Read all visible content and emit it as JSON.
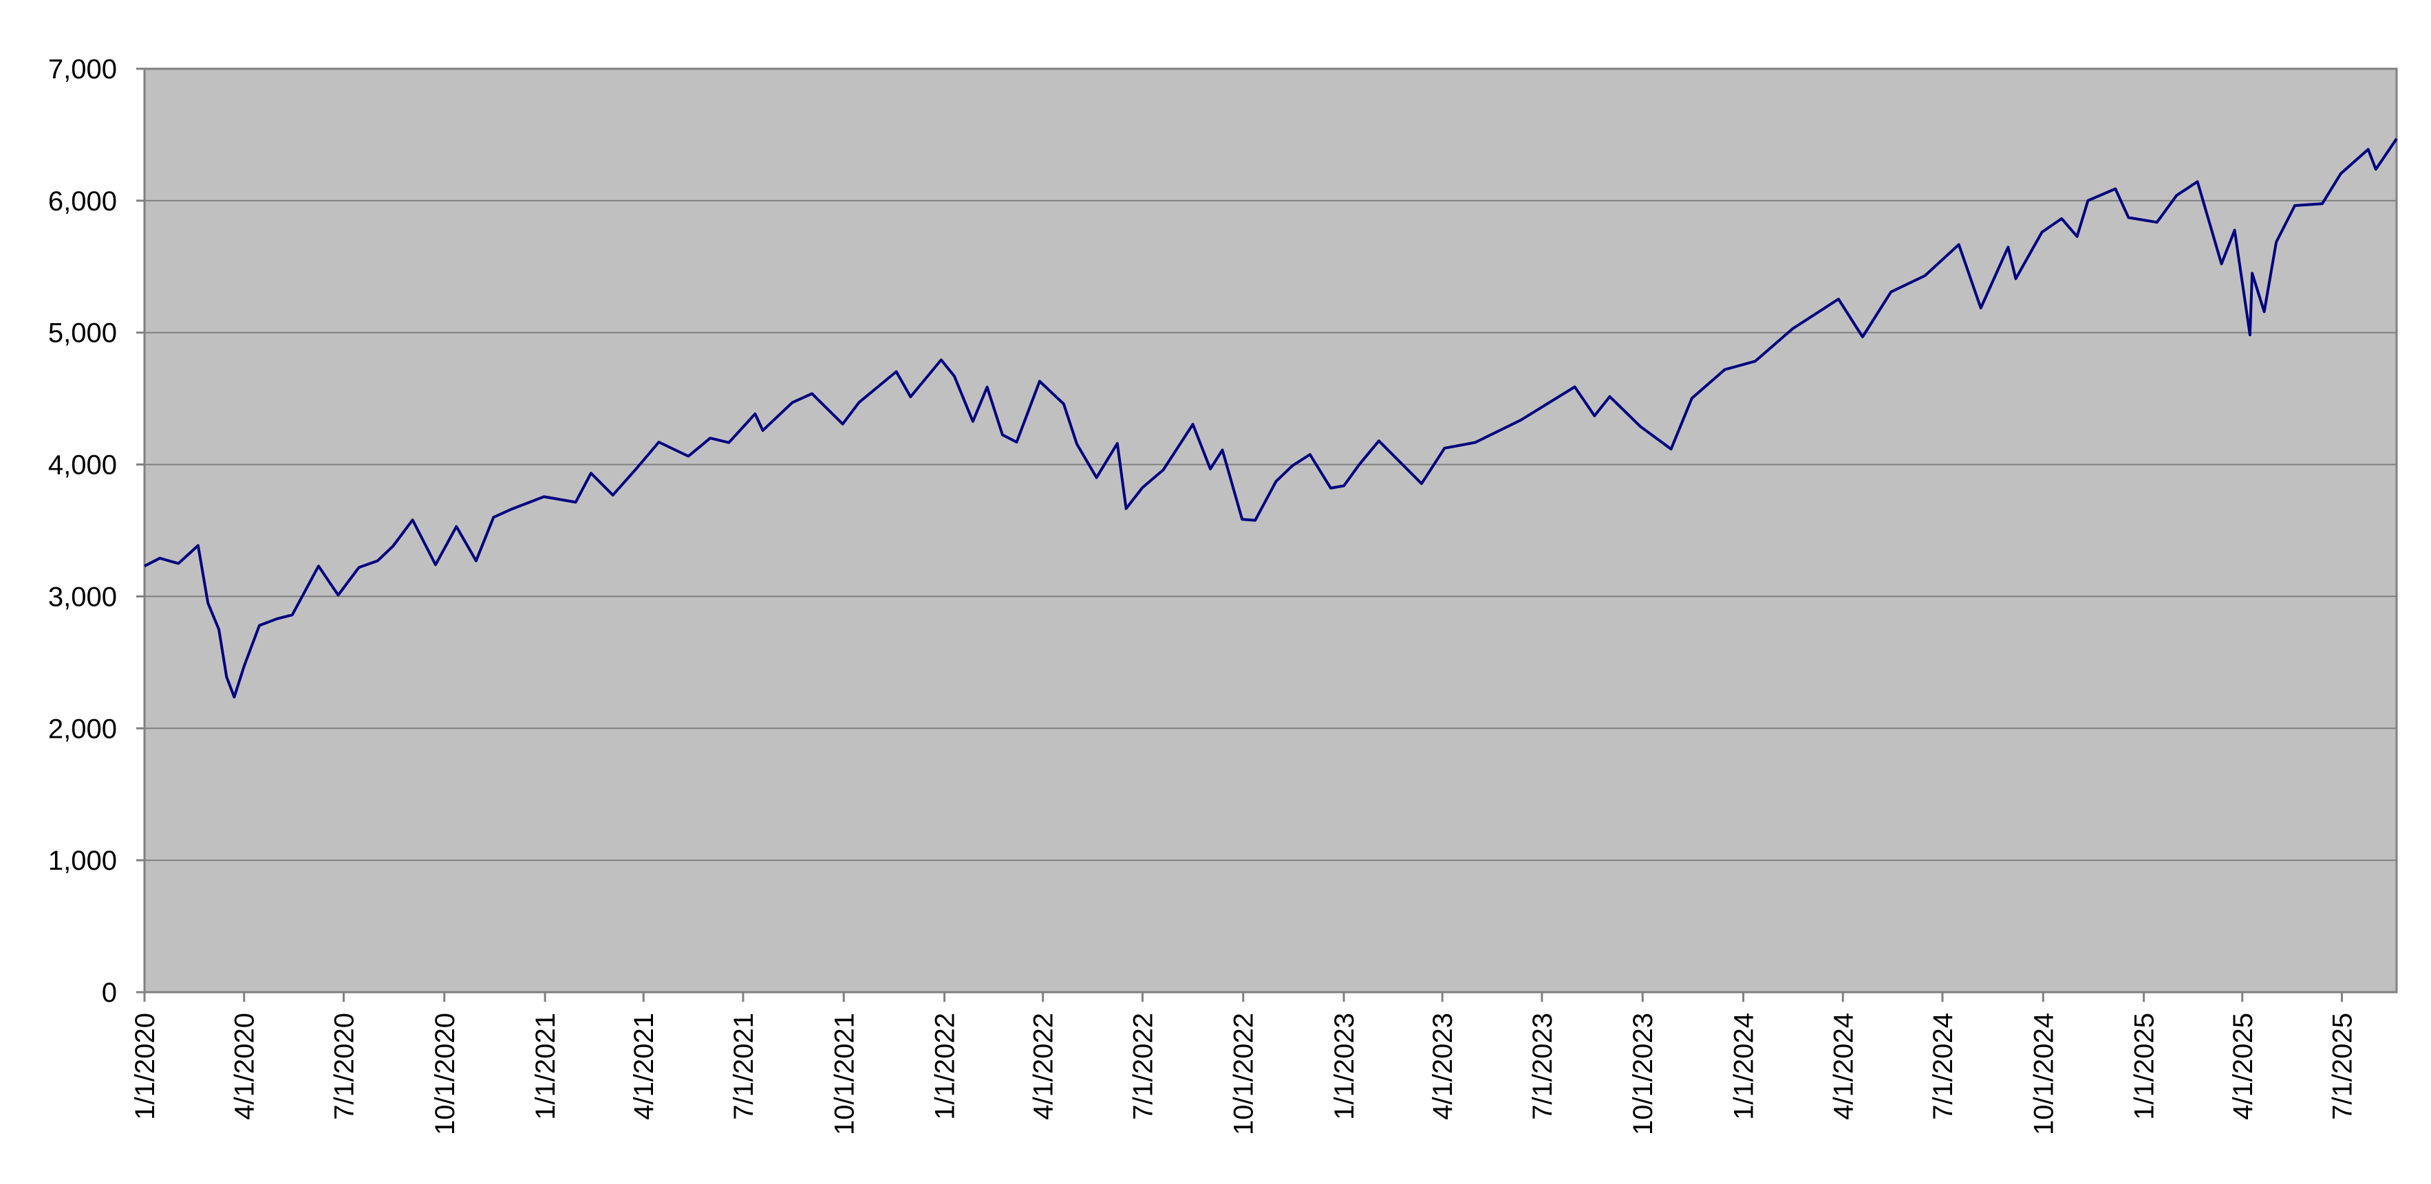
{
  "chart_data": {
    "type": "line",
    "title": "",
    "xlabel": "",
    "ylabel": "",
    "ylim": [
      0,
      7000
    ],
    "xlim": [
      "2020-01-01",
      "2025-08-20"
    ],
    "grid": true,
    "legend": "none",
    "y_ticks": [
      0,
      1000,
      2000,
      3000,
      4000,
      5000,
      6000,
      7000
    ],
    "y_tick_labels": [
      "0",
      "1,000",
      "2,000",
      "3,000",
      "4,000",
      "5,000",
      "6,000",
      "7,000"
    ],
    "x_ticks": [
      "2020-01-01",
      "2020-04-01",
      "2020-07-01",
      "2020-10-01",
      "2021-01-01",
      "2021-04-01",
      "2021-07-01",
      "2021-10-01",
      "2022-01-01",
      "2022-04-01",
      "2022-07-01",
      "2022-10-01",
      "2023-01-01",
      "2023-04-01",
      "2023-07-01",
      "2023-10-01",
      "2024-01-01",
      "2024-04-01",
      "2024-07-01",
      "2024-10-01",
      "2025-01-01",
      "2025-04-01",
      "2025-07-01"
    ],
    "x_tick_labels": [
      "1/1/2020",
      "4/1/2020",
      "7/1/2020",
      "10/1/2020",
      "1/1/2021",
      "4/1/2021",
      "7/1/2021",
      "10/1/2021",
      "1/1/2022",
      "4/1/2022",
      "7/1/2022",
      "10/1/2022",
      "1/1/2023",
      "4/1/2023",
      "7/1/2023",
      "10/1/2023",
      "1/1/2024",
      "4/1/2024",
      "7/1/2024",
      "10/1/2024",
      "1/1/2025",
      "4/1/2025",
      "7/1/2025"
    ],
    "colors": {
      "plot_background": "#C0C0C0",
      "line": "#000080",
      "grid": "#808080",
      "axis": "#808080"
    },
    "series": [
      {
        "points": [
          [
            "2020-01-01",
            3230
          ],
          [
            "2020-01-15",
            3290
          ],
          [
            "2020-02-01",
            3250
          ],
          [
            "2020-02-19",
            3386
          ],
          [
            "2020-02-28",
            2950
          ],
          [
            "2020-03-09",
            2750
          ],
          [
            "2020-03-16",
            2390
          ],
          [
            "2020-03-23",
            2237
          ],
          [
            "2020-04-01",
            2470
          ],
          [
            "2020-04-15",
            2780
          ],
          [
            "2020-05-01",
            2830
          ],
          [
            "2020-05-15",
            2860
          ],
          [
            "2020-06-08",
            3230
          ],
          [
            "2020-06-26",
            3010
          ],
          [
            "2020-07-15",
            3220
          ],
          [
            "2020-08-01",
            3270
          ],
          [
            "2020-08-15",
            3380
          ],
          [
            "2020-09-02",
            3580
          ],
          [
            "2020-09-23",
            3240
          ],
          [
            "2020-10-12",
            3530
          ],
          [
            "2020-10-30",
            3270
          ],
          [
            "2020-11-15",
            3600
          ],
          [
            "2020-12-01",
            3660
          ],
          [
            "2020-12-31",
            3756
          ],
          [
            "2021-01-29",
            3714
          ],
          [
            "2021-02-12",
            3934
          ],
          [
            "2021-03-04",
            3768
          ],
          [
            "2021-03-26",
            3974
          ],
          [
            "2021-04-15",
            4170
          ],
          [
            "2021-05-12",
            4063
          ],
          [
            "2021-06-01",
            4200
          ],
          [
            "2021-06-18",
            4166
          ],
          [
            "2021-07-12",
            4384
          ],
          [
            "2021-07-19",
            4258
          ],
          [
            "2021-08-15",
            4470
          ],
          [
            "2021-09-02",
            4537
          ],
          [
            "2021-09-30",
            4307
          ],
          [
            "2021-10-15",
            4471
          ],
          [
            "2021-11-18",
            4704
          ],
          [
            "2021-12-01",
            4513
          ],
          [
            "2021-12-29",
            4793
          ],
          [
            "2022-01-10",
            4670
          ],
          [
            "2022-01-27",
            4326
          ],
          [
            "2022-02-09",
            4587
          ],
          [
            "2022-02-23",
            4225
          ],
          [
            "2022-03-08",
            4170
          ],
          [
            "2022-03-29",
            4631
          ],
          [
            "2022-04-20",
            4459
          ],
          [
            "2022-05-02",
            4155
          ],
          [
            "2022-05-20",
            3901
          ],
          [
            "2022-06-08",
            4160
          ],
          [
            "2022-06-16",
            3666
          ],
          [
            "2022-07-01",
            3825
          ],
          [
            "2022-07-20",
            3959
          ],
          [
            "2022-08-16",
            4305
          ],
          [
            "2022-09-01",
            3966
          ],
          [
            "2022-09-12",
            4110
          ],
          [
            "2022-09-30",
            3585
          ],
          [
            "2022-10-12",
            3577
          ],
          [
            "2022-10-31",
            3872
          ],
          [
            "2022-11-15",
            3991
          ],
          [
            "2022-12-01",
            4076
          ],
          [
            "2022-12-20",
            3821
          ],
          [
            "2023-01-01",
            3839
          ],
          [
            "2023-01-15",
            3999
          ],
          [
            "2023-02-02",
            4179
          ],
          [
            "2023-03-13",
            3855
          ],
          [
            "2023-04-03",
            4124
          ],
          [
            "2023-05-01",
            4167
          ],
          [
            "2023-06-12",
            4338
          ],
          [
            "2023-07-31",
            4589
          ],
          [
            "2023-08-18",
            4369
          ],
          [
            "2023-09-01",
            4515
          ],
          [
            "2023-09-29",
            4288
          ],
          [
            "2023-10-27",
            4117
          ],
          [
            "2023-11-15",
            4502
          ],
          [
            "2023-12-15",
            4719
          ],
          [
            "2024-01-12",
            4783
          ],
          [
            "2024-02-15",
            5029
          ],
          [
            "2024-03-28",
            5254
          ],
          [
            "2024-04-19",
            4967
          ],
          [
            "2024-05-15",
            5308
          ],
          [
            "2024-06-15",
            5431
          ],
          [
            "2024-07-16",
            5667
          ],
          [
            "2024-08-05",
            5186
          ],
          [
            "2024-08-30",
            5648
          ],
          [
            "2024-09-06",
            5408
          ],
          [
            "2024-09-30",
            5762
          ],
          [
            "2024-10-18",
            5864
          ],
          [
            "2024-11-01",
            5728
          ],
          [
            "2024-11-11",
            6001
          ],
          [
            "2024-12-06",
            6090
          ],
          [
            "2024-12-18",
            5872
          ],
          [
            "2025-01-13",
            5836
          ],
          [
            "2025-01-31",
            6040
          ],
          [
            "2025-02-19",
            6144
          ],
          [
            "2025-03-13",
            5521
          ],
          [
            "2025-03-25",
            5776
          ],
          [
            "2025-04-08",
            4983
          ],
          [
            "2025-04-10",
            5450
          ],
          [
            "2025-04-21",
            5158
          ],
          [
            "2025-05-02",
            5686
          ],
          [
            "2025-05-19",
            5963
          ],
          [
            "2025-06-13",
            5977
          ],
          [
            "2025-06-30",
            6205
          ],
          [
            "2025-07-25",
            6389
          ],
          [
            "2025-08-01",
            6238
          ],
          [
            "2025-08-20",
            6470
          ]
        ]
      }
    ]
  }
}
